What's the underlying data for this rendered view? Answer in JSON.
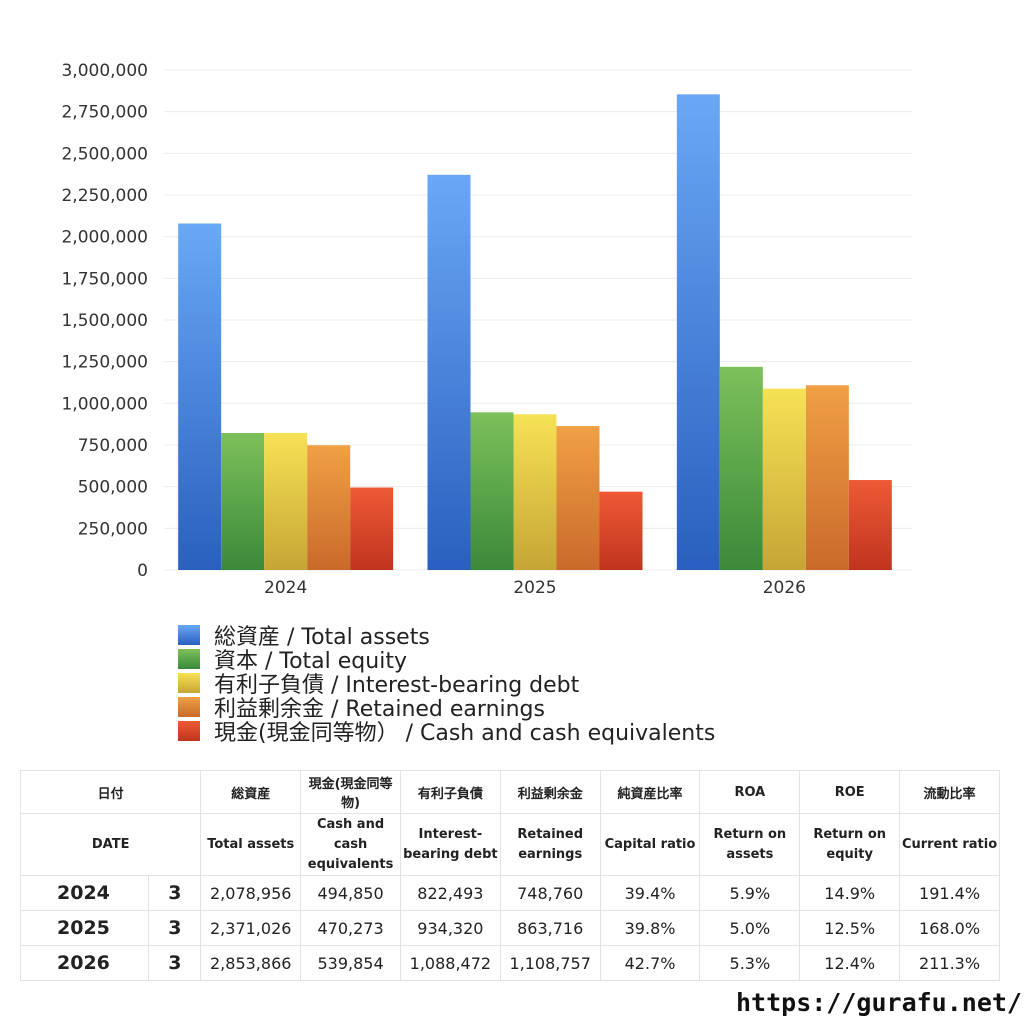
{
  "chart_data": {
    "type": "bar",
    "categories": [
      "2024",
      "2025",
      "2026"
    ],
    "ylim": [
      0,
      3000000
    ],
    "yticks": [
      "0",
      "250,000",
      "500,000",
      "750,000",
      "1,000,000",
      "1,250,000",
      "1,500,000",
      "1,750,000",
      "2,000,000",
      "2,250,000",
      "2,500,000",
      "2,750,000",
      "3,000,000"
    ],
    "grid": true,
    "legend_position": "bottom",
    "series": [
      {
        "name": "総資産 / Total assets",
        "values": [
          2078956,
          2371026,
          2853866
        ],
        "color_top": "#6aa8f5",
        "color_bottom": "#2a5fbf"
      },
      {
        "name": "資本 / Total equity",
        "values": [
          822000,
          946000,
          1219000
        ],
        "color_top": "#7cc05a",
        "color_bottom": "#3a8a3a"
      },
      {
        "name": "有利子負債 / Interest-bearing debt",
        "values": [
          822493,
          934320,
          1088472
        ],
        "color_top": "#f6e255",
        "color_bottom": "#c6a535"
      },
      {
        "name": "利益剰余金 / Retained earnings",
        "values": [
          748760,
          863716,
          1108757
        ],
        "color_top": "#f0a045",
        "color_bottom": "#c96a2a"
      },
      {
        "name": "現金(現金同等物） /  Cash and cash equivalents",
        "values": [
          494850,
          470273,
          539854
        ],
        "color_top": "#ee5a35",
        "color_bottom": "#c0341f"
      }
    ]
  },
  "table": {
    "headers_ja": [
      "日付",
      "",
      "総資産",
      "現金(現金同等物)",
      "有利子負債",
      "利益剰余金",
      "純資産比率",
      "ROA",
      "ROE",
      "流動比率"
    ],
    "headers_en": [
      "DATE",
      "",
      "Total assets",
      "Cash and cash equivalents",
      "Interest-bearing debt",
      "Retained earnings",
      "Capital ratio",
      "Return on assets",
      "Return on equity",
      "Current ratio"
    ],
    "rows": [
      [
        "2024",
        "3",
        "2,078,956",
        "494,850",
        "822,493",
        "748,760",
        "39.4%",
        "5.9%",
        "14.9%",
        "191.4%"
      ],
      [
        "2025",
        "3",
        "2,371,026",
        "470,273",
        "934,320",
        "863,716",
        "39.8%",
        "5.0%",
        "12.5%",
        "168.0%"
      ],
      [
        "2026",
        "3",
        "2,853,866",
        "539,854",
        "1,088,472",
        "1,108,757",
        "42.7%",
        "5.3%",
        "12.4%",
        "211.3%"
      ]
    ]
  },
  "site_url": "https://gurafu.net/"
}
